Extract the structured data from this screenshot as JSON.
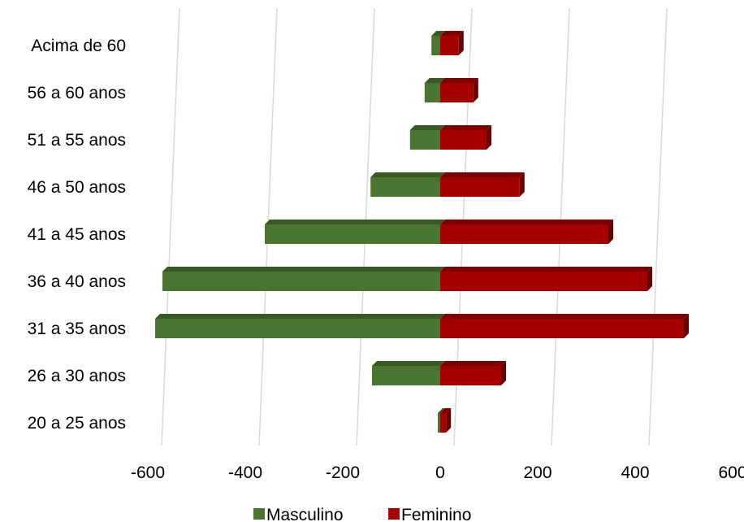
{
  "chart_data": {
    "type": "bar",
    "orientation": "horizontal",
    "style": "3d-population-pyramid",
    "title": "",
    "xlabel": "",
    "ylabel": "",
    "categories": [
      "20 a 25 anos",
      "26 a 30 anos",
      "31 a 35 anos",
      "36 a 40 anos",
      "41 a 45 anos",
      "46 a 50 anos",
      "51 a 55 anos",
      "56 a 60 anos",
      "Acima de 60"
    ],
    "series": [
      {
        "name": "Masculino",
        "color": "#4a7530",
        "values": [
          -5,
          -140,
          -585,
          -570,
          -360,
          -143,
          -62,
          -32,
          -18
        ]
      },
      {
        "name": "Feminino",
        "color": "#a50000",
        "values": [
          12,
          125,
          500,
          425,
          345,
          163,
          95,
          68,
          38
        ]
      }
    ],
    "xlim": [
      -600,
      600
    ],
    "xticks": [
      -600,
      -400,
      -200,
      0,
      200,
      400,
      600
    ],
    "xtick_labels": [
      "-600",
      "-400",
      "-200",
      "0",
      "200",
      "400",
      "600"
    ],
    "grid": true,
    "legend_position": "bottom"
  }
}
